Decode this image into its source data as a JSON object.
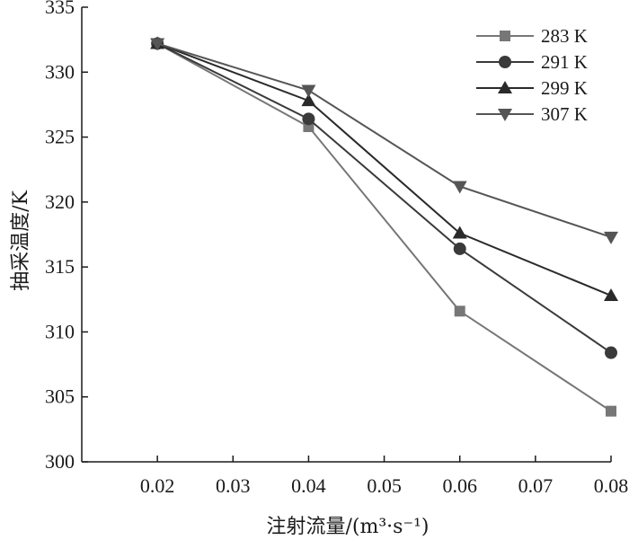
{
  "chart_data": {
    "type": "line",
    "title": "",
    "xlabel": "注射流量/(m³·s⁻¹)",
    "ylabel": "抽采温度/K",
    "x": [
      0.02,
      0.04,
      0.06,
      0.08
    ],
    "xticks": [
      "0.02",
      "0.03",
      "0.04",
      "0.05",
      "0.06",
      "0.07",
      "0.08"
    ],
    "yticks": [
      "300",
      "305",
      "310",
      "315",
      "320",
      "325",
      "330",
      "335"
    ],
    "xlim": [
      0.01,
      0.08
    ],
    "ylim": [
      300,
      335
    ],
    "grid": false,
    "legend_position": "top-right",
    "series": [
      {
        "name": "283 K",
        "marker": "square",
        "color": "#777777",
        "values": [
          332.2,
          325.8,
          311.6,
          303.9
        ]
      },
      {
        "name": "291 K",
        "marker": "circle",
        "color": "#3a3a3a",
        "values": [
          332.2,
          326.4,
          316.4,
          308.4
        ]
      },
      {
        "name": "299 K",
        "marker": "triangle-up",
        "color": "#2a2a2a",
        "values": [
          332.2,
          327.8,
          317.6,
          312.8
        ]
      },
      {
        "name": "307 K",
        "marker": "triangle-down",
        "color": "#555555",
        "values": [
          332.2,
          328.6,
          321.2,
          317.3
        ]
      }
    ]
  }
}
